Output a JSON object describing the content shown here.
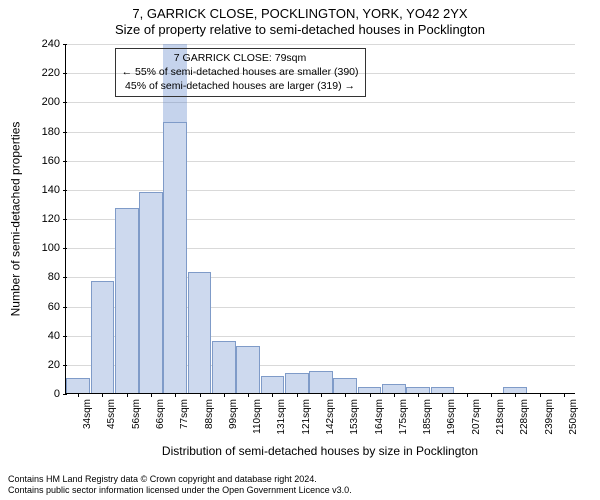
{
  "titles": {
    "line1": "7, GARRICK CLOSE, POCKLINGTON, YORK, YO42 2YX",
    "line2": "Size of property relative to semi-detached houses in Pocklington"
  },
  "axes": {
    "ylabel": "Number of semi-detached properties",
    "xlabel": "Distribution of semi-detached houses by size in Pocklington",
    "ymax": 240,
    "ytick_step": 20,
    "grid_color": "#d9d9d9",
    "tick_fontsize": 11,
    "label_fontsize": 12
  },
  "histogram": {
    "type": "histogram",
    "bar_fill": "#cdd9ee",
    "bar_stroke": "#7f9bc8",
    "highlight_fill": "rgba(90,130,200,0.35)",
    "categories": [
      "34sqm",
      "45sqm",
      "56sqm",
      "66sqm",
      "77sqm",
      "88sqm",
      "99sqm",
      "110sqm",
      "131sqm",
      "121sqm",
      "142sqm",
      "153sqm",
      "164sqm",
      "175sqm",
      "185sqm",
      "196sqm",
      "207sqm",
      "218sqm",
      "228sqm",
      "239sqm",
      "250sqm"
    ],
    "values": [
      10,
      77,
      127,
      138,
      186,
      83,
      36,
      32,
      12,
      14,
      15,
      10,
      4,
      6,
      4,
      4,
      0,
      0,
      4,
      0,
      0
    ],
    "highlight_index": 4
  },
  "annotation": {
    "line1": "7 GARRICK CLOSE: 79sqm",
    "line2": "← 55% of semi-detached houses are smaller (390)",
    "line3": "45% of semi-detached houses are larger (319) →",
    "border_color": "#333333"
  },
  "attribution": {
    "line1": "Contains HM Land Registry data © Crown copyright and database right 2024.",
    "line2": "Contains public sector information licensed under the Open Government Licence v3.0."
  }
}
